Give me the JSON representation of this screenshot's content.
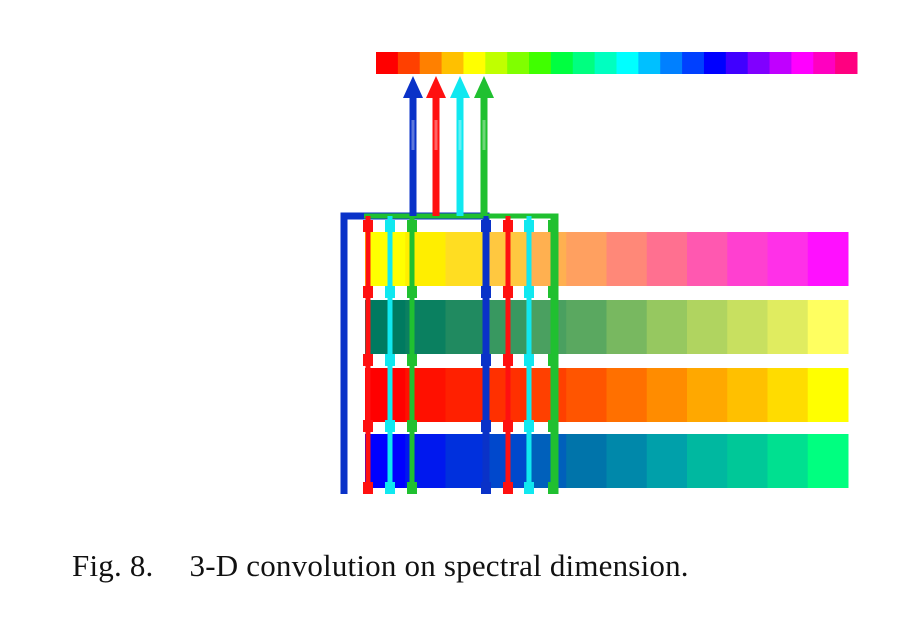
{
  "figure": {
    "spectrum_colors": [
      "#ff0000",
      "#ff4000",
      "#ff8000",
      "#ffc000",
      "#ffff00",
      "#c0ff00",
      "#80ff00",
      "#40ff00",
      "#00ff40",
      "#00ff80",
      "#00ffc0",
      "#00ffff",
      "#00c0ff",
      "#0080ff",
      "#0040ff",
      "#0000ff",
      "#4000ff",
      "#8000ff",
      "#c000ff",
      "#ff00ff",
      "#ff00c0",
      "#ff0080"
    ],
    "bands": [
      {
        "name": "band-yellow-magenta",
        "colors": [
          "#ffff00",
          "#ffee00",
          "#ffdd22",
          "#ffc840",
          "#ffb050",
          "#ffa060",
          "#ff8878",
          "#ff7090",
          "#ff58b0",
          "#ff40d0",
          "#ff30e8",
          "#ff10ff"
        ]
      },
      {
        "name": "band-green-yellow",
        "colors": [
          "#007a60",
          "#0a8060",
          "#208a60",
          "#389860",
          "#4aa060",
          "#5aa860",
          "#78b860",
          "#96c860",
          "#b0d460",
          "#c8e060",
          "#e0ec60",
          "#ffff60"
        ]
      },
      {
        "name": "band-red-yellow",
        "colors": [
          "#ff0000",
          "#ff1000",
          "#ff2000",
          "#ff3000",
          "#ff4000",
          "#ff5500",
          "#ff7000",
          "#ff8c00",
          "#ffa800",
          "#ffc000",
          "#ffdc00",
          "#ffff00"
        ]
      },
      {
        "name": "band-blue-green",
        "colors": [
          "#0000ff",
          "#0018ee",
          "#0030dd",
          "#0048cc",
          "#0060bb",
          "#0074aa",
          "#0088aa",
          "#00a0aa",
          "#00b8a0",
          "#00c898",
          "#00e090",
          "#00ff80"
        ]
      }
    ],
    "kernel_colors": {
      "blue": "#0a32c8",
      "red": "#ff1010",
      "cyan": "#10e8f0",
      "green": "#20c030"
    },
    "arrow_order": [
      "blue",
      "red",
      "cyan",
      "green"
    ]
  },
  "caption": {
    "label": "Fig. 8.",
    "text": "3-D convolution on spectral dimension."
  }
}
